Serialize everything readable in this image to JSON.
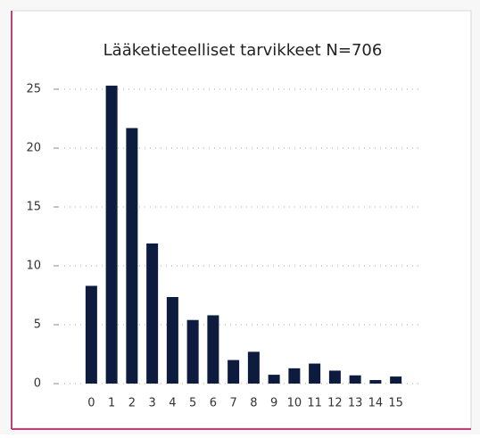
{
  "chart_data": {
    "type": "bar",
    "title": "Lääketieteelliset tarvikkeet N=706",
    "categories": [
      "0",
      "1",
      "2",
      "3",
      "4",
      "5",
      "6",
      "7",
      "8",
      "9",
      "10",
      "11",
      "12",
      "13",
      "14",
      "15"
    ],
    "values": [
      8.3,
      25.3,
      21.7,
      11.9,
      7.35,
      5.4,
      5.8,
      2.0,
      2.7,
      0.75,
      1.3,
      1.7,
      1.1,
      0.7,
      0.3,
      0.6
    ],
    "color": "#0d1b3e",
    "ylim": [
      0,
      26
    ],
    "yticks": [
      0,
      5,
      10,
      15,
      20,
      25
    ],
    "grid": true
  }
}
